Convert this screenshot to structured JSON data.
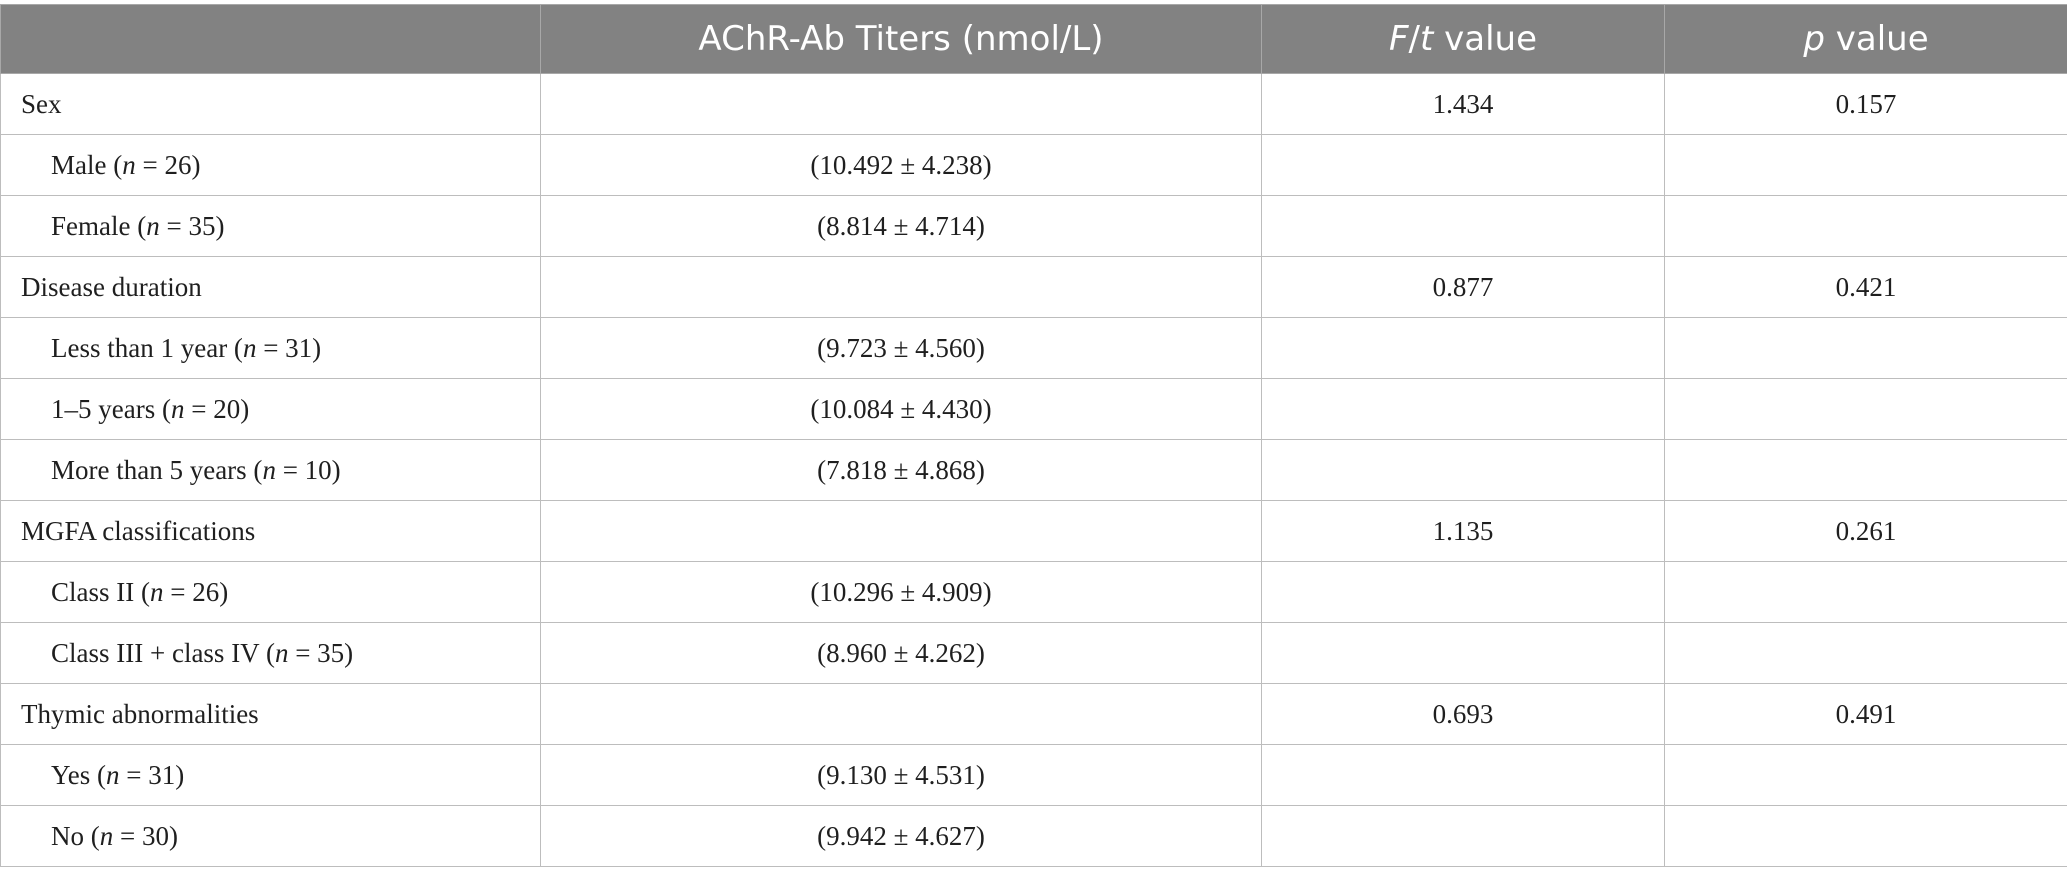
{
  "header": {
    "col_blank": "",
    "col_titers": "AChR-Ab Titers (nmol/L)",
    "col_ft_F": "F",
    "col_ft_slash": "/",
    "col_ft_t": "t",
    "col_ft_rest": " value",
    "col_p_p": "p",
    "col_p_rest": " value"
  },
  "rows": [
    {
      "type": "group",
      "label": "Sex",
      "titers": "",
      "ft": "1.434",
      "p": "0.157"
    },
    {
      "type": "sub",
      "label_pre": "Male (",
      "n": "n",
      "label_post": " = 26)",
      "titers": "(10.492 ± 4.238)",
      "ft": "",
      "p": ""
    },
    {
      "type": "sub",
      "label_pre": "Female (",
      "n": "n",
      "label_post": " = 35)",
      "titers": "(8.814 ± 4.714)",
      "ft": "",
      "p": ""
    },
    {
      "type": "group",
      "label": "Disease duration",
      "titers": "",
      "ft": "0.877",
      "p": "0.421"
    },
    {
      "type": "sub",
      "label_pre": "Less than 1 year (",
      "n": "n",
      "label_post": " = 31)",
      "titers": "(9.723 ± 4.560)",
      "ft": "",
      "p": ""
    },
    {
      "type": "sub",
      "label_pre": "1–5 years (",
      "n": "n",
      "label_post": " = 20)",
      "titers": "(10.084 ± 4.430)",
      "ft": "",
      "p": ""
    },
    {
      "type": "sub",
      "label_pre": "More than 5 years (",
      "n": "n",
      "label_post": " = 10)",
      "titers": "(7.818 ± 4.868)",
      "ft": "",
      "p": ""
    },
    {
      "type": "group",
      "label": "MGFA classifications",
      "titers": "",
      "ft": "1.135",
      "p": "0.261"
    },
    {
      "type": "sub",
      "label_pre": "Class II (",
      "n": "n",
      "label_post": " = 26)",
      "titers": "(10.296 ± 4.909)",
      "ft": "",
      "p": ""
    },
    {
      "type": "sub",
      "label_pre": "Class III + class IV (",
      "n": "n",
      "label_post": " = 35)",
      "titers": "(8.960 ± 4.262)",
      "ft": "",
      "p": ""
    },
    {
      "type": "group",
      "label": "Thymic abnormalities",
      "titers": "",
      "ft": "0.693",
      "p": "0.491"
    },
    {
      "type": "sub",
      "label_pre": "Yes (",
      "n": "n",
      "label_post": " = 31)",
      "titers": "(9.130 ± 4.531)",
      "ft": "",
      "p": ""
    },
    {
      "type": "sub",
      "label_pre": "No (",
      "n": "n",
      "label_post": " = 30)",
      "titers": "(9.942 ± 4.627)",
      "ft": "",
      "p": ""
    }
  ]
}
